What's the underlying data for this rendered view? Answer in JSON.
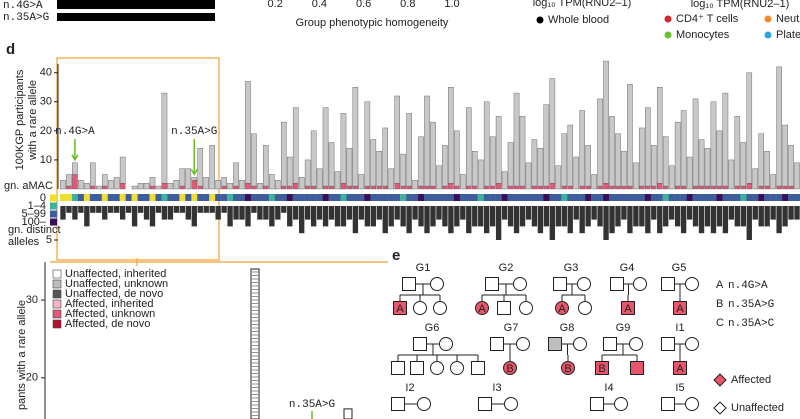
{
  "top": {
    "labels": [
      "n.4G>A",
      "n.35A>G"
    ],
    "axis_ticks": [
      0.2,
      0.4,
      0.6,
      0.8,
      {
        "value": 1,
        "label": "1.0"
      }
    ],
    "axis_label": "Group phenotypic homogeneity",
    "tpm_label": "log₁₀ TPM(RNU2–1)",
    "whole_blood": "Whole blood",
    "cell_legend": [
      {
        "name": "CD4⁺ T cells",
        "color": "#d62728"
      },
      {
        "name": "Neutrophils",
        "color": "#f08a24"
      },
      {
        "name": "Monocytes",
        "color": "#6cc12a"
      },
      {
        "name": "Platelets",
        "color": "#29a9e0"
      }
    ]
  },
  "chart_data": {
    "type": "bar",
    "letter": "d",
    "ylabel": [
      "100KGP participants",
      "with a rare allele"
    ],
    "ylim": [
      0,
      43
    ],
    "yticks": [
      10,
      20,
      30,
      40
    ],
    "series": [
      {
        "color": "#e05a78",
        "values": [
          0,
          1,
          5,
          0,
          0,
          1,
          0,
          1,
          0,
          0,
          2,
          0,
          0,
          0,
          0,
          1,
          0,
          2,
          0,
          0,
          1,
          0,
          3,
          1,
          0,
          0,
          0,
          1,
          0,
          1,
          0,
          2,
          1,
          0,
          1,
          0,
          0,
          1,
          1,
          2,
          0,
          1,
          1,
          0,
          1,
          1,
          0,
          2,
          1,
          1,
          0,
          1,
          1,
          1,
          1,
          0,
          2,
          1,
          1,
          0,
          1,
          1,
          1,
          0,
          1,
          2,
          1,
          0,
          1,
          1,
          0,
          1,
          1,
          2,
          0,
          1,
          1,
          1,
          0,
          1,
          1,
          1,
          2,
          0,
          1,
          1,
          0,
          1,
          1,
          0,
          1,
          2,
          1,
          1,
          1,
          1,
          0,
          1,
          1,
          1,
          2,
          1,
          0,
          1,
          1,
          0,
          1,
          1,
          1,
          1,
          1,
          1,
          0,
          1,
          1,
          2,
          0,
          1,
          1,
          0,
          1,
          1,
          1,
          0
        ]
      },
      {
        "color": "#c8c8c8",
        "values": [
          3,
          4,
          4,
          3,
          2,
          8,
          1,
          4,
          3,
          4,
          9,
          0,
          1,
          2,
          2,
          3,
          1,
          31,
          2,
          3,
          6,
          7,
          1,
          13,
          4,
          15,
          3,
          3,
          2,
          8,
          3,
          35,
          18,
          2,
          14,
          5,
          3,
          22,
          10,
          26,
          4,
          9,
          19,
          7,
          27,
          15,
          6,
          24,
          13,
          34,
          5,
          29,
          16,
          12,
          20,
          7,
          30,
          11,
          25,
          3,
          17,
          31,
          22,
          8,
          14,
          33,
          19,
          5,
          27,
          12,
          10,
          29,
          17,
          23,
          6,
          15,
          32,
          24,
          9,
          16,
          13,
          28,
          36,
          8,
          18,
          21,
          11,
          26,
          14,
          5,
          30,
          42,
          24,
          18,
          12,
          35,
          9,
          20,
          27,
          14,
          33,
          17,
          8,
          22,
          26,
          11,
          30,
          16,
          13,
          29,
          19,
          32,
          10,
          24,
          15,
          38,
          7,
          18,
          12,
          5,
          41,
          21,
          14,
          9
        ]
      }
    ],
    "annotations": [
      {
        "text": "n.4G>A",
        "index": 2
      },
      {
        "text": "n.35A>G",
        "index": 22
      }
    ],
    "amac_label": "gn. aMAC",
    "amac_legend": [
      {
        "name": "0",
        "color": "#f0dc32"
      },
      {
        "name": "1–4",
        "color": "#3fb39a"
      },
      {
        "name": "5–99",
        "color": "#3d5d9e"
      },
      {
        "name": "100–",
        "color": "#3b0f55"
      }
    ],
    "amac": [
      0,
      0,
      1,
      2,
      0,
      2,
      2,
      0,
      2,
      2,
      0,
      2,
      0,
      2,
      2,
      0,
      2,
      1,
      2,
      2,
      0,
      2,
      0,
      2,
      2,
      0,
      2,
      2,
      1,
      2,
      2,
      3,
      2,
      2,
      2,
      1,
      2,
      2,
      3,
      2,
      2,
      2,
      2,
      2,
      3,
      2,
      2,
      1,
      2,
      2,
      2,
      3,
      2,
      2,
      2,
      2,
      2,
      1,
      2,
      2,
      3,
      2,
      2,
      2,
      2,
      2,
      3,
      2,
      2,
      2,
      1,
      2,
      2,
      2,
      3,
      2,
      2,
      2,
      2,
      2,
      2,
      3,
      2,
      2,
      1,
      2,
      2,
      2,
      3,
      2,
      2,
      3,
      2,
      2,
      2,
      2,
      2,
      2,
      3,
      2,
      2,
      1,
      2,
      2,
      2,
      3,
      2,
      2,
      2,
      2,
      3,
      2,
      2,
      2,
      1,
      2,
      2,
      3,
      2,
      2,
      2,
      3,
      2,
      2
    ],
    "distinct_label": [
      "gn. distinct",
      "alleles"
    ],
    "distinct_lim": [
      0,
      5
    ],
    "distinct_ticks": [
      5
    ],
    "distinct": [
      2,
      1,
      2,
      1,
      3,
      1,
      1,
      2,
      1,
      1,
      2,
      1,
      3,
      1,
      2,
      3,
      1,
      2,
      2,
      1,
      1,
      2,
      3,
      1,
      1,
      1,
      2,
      1,
      3,
      2,
      2,
      3,
      1,
      2,
      2,
      3,
      2,
      1,
      3,
      2,
      4,
      2,
      3,
      2,
      3,
      2,
      3,
      3,
      2,
      4,
      2,
      3,
      3,
      2,
      4,
      3,
      2,
      3,
      4,
      2,
      3,
      4,
      3,
      2,
      3,
      4,
      3,
      2,
      4,
      3,
      3,
      4,
      3,
      5,
      2,
      3,
      4,
      3,
      2,
      3,
      4,
      3,
      5,
      3,
      3,
      4,
      2,
      4,
      3,
      2,
      3,
      5,
      4,
      3,
      2,
      4,
      3,
      3,
      4,
      2,
      4,
      3,
      2,
      3,
      4,
      2,
      3,
      4,
      3,
      4,
      3,
      4,
      2,
      3,
      3,
      5,
      2,
      3,
      3,
      2,
      4,
      3,
      2,
      2
    ]
  },
  "lower": {
    "legend": [
      {
        "name": "Unaffected, inherited",
        "color": "#ffffff"
      },
      {
        "name": "Unaffected, unknown",
        "color": "#bdbdbd"
      },
      {
        "name": "Unaffected, de novo",
        "color": "#555555"
      },
      {
        "name": "Affected, inherited",
        "color": "#f4b6c4"
      },
      {
        "name": "Affected, unknown",
        "color": "#e05a78"
      },
      {
        "name": "Affected, de novo",
        "color": "#b5122e"
      }
    ],
    "ylabel": "pants with a rare allele",
    "ylim": [
      14.7,
      34.9
    ],
    "yticks": [
      20,
      30
    ],
    "values": [
      34,
      16
    ],
    "annotation": "n.35A>G"
  },
  "panel_e": {
    "letter": "e",
    "pedigrees": [
      {
        "id": "G1",
        "allele": "A"
      },
      {
        "id": "G2",
        "allele": "A"
      },
      {
        "id": "G3",
        "allele": "A"
      },
      {
        "id": "G4",
        "allele": "A"
      },
      {
        "id": "G5",
        "allele": "A"
      },
      {
        "id": "G6"
      },
      {
        "id": "G7",
        "allele": "B"
      },
      {
        "id": "G8",
        "allele": "B"
      },
      {
        "id": "G9",
        "allele": "B"
      },
      {
        "id": "I1",
        "allele": "A"
      },
      {
        "id": "I2"
      },
      {
        "id": "I3"
      },
      {
        "id": "I4"
      },
      {
        "id": "I5"
      }
    ],
    "key": [
      {
        "letter": "A",
        "variant": "n.4G>A"
      },
      {
        "letter": "B",
        "variant": "n.35A>G"
      },
      {
        "letter": "C",
        "variant": "n.35A>C"
      }
    ],
    "affected": "Affected",
    "unaffected": "Unaffected"
  }
}
